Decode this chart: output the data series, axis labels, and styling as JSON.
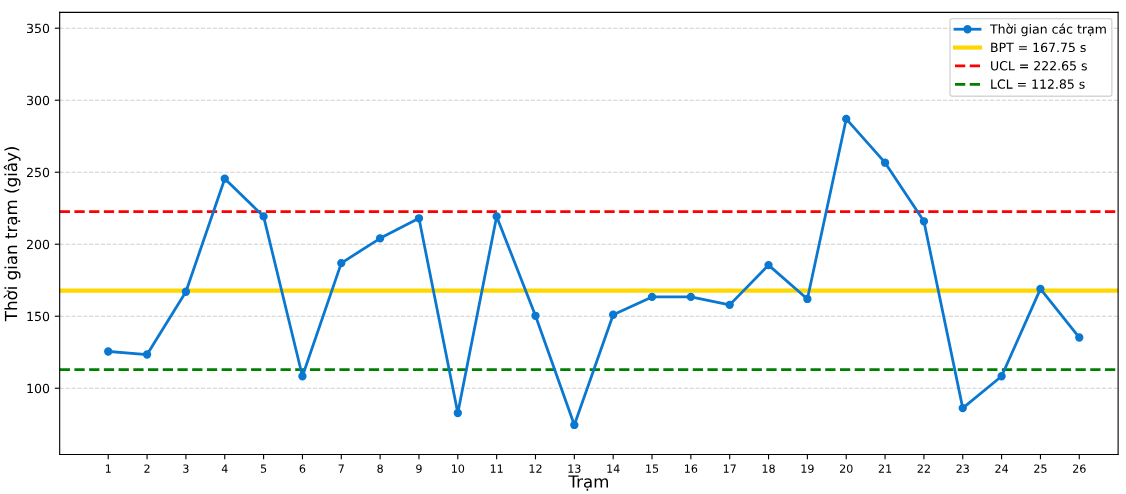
{
  "chart_data": {
    "type": "line",
    "xlabel": "Trạm",
    "ylabel": "Thời gian trạm (giây)",
    "categories": [
      "1",
      "2",
      "3",
      "4",
      "5",
      "6",
      "7",
      "8",
      "9",
      "10",
      "11",
      "12",
      "13",
      "14",
      "15",
      "16",
      "17",
      "18",
      "19",
      "20",
      "21",
      "22",
      "23",
      "24",
      "25",
      "26"
    ],
    "series": [
      {
        "name": "Thời gian các trạm",
        "color": "#0a78d0",
        "values": [
          125.5,
          123.4,
          167,
          245.5,
          219.3,
          108.3,
          186.9,
          204.1,
          218,
          82.8,
          219.3,
          150.3,
          74.5,
          151,
          163.4,
          163.4,
          157.9,
          185.5,
          162,
          287,
          256.6,
          215.9,
          86.2,
          108.3,
          169,
          135.2
        ]
      }
    ],
    "ref_lines": [
      {
        "axis": "y",
        "value": 167.75,
        "label": "BPT = 167.75 s",
        "color": "#ffd700",
        "line_style": "solid"
      },
      {
        "axis": "y",
        "value": 222.65,
        "label": "UCL = 222.65 s",
        "color": "#ff0000",
        "line_style": "dashed"
      },
      {
        "axis": "y",
        "value": 112.85,
        "label": "LCL = 112.85 s",
        "color": "#008000",
        "line_style": "dashed"
      }
    ],
    "ylim": [
      54,
      361
    ],
    "yticks": [
      100,
      150,
      200,
      250,
      300,
      350
    ],
    "grid": "y",
    "legend": "top right",
    "marker": "circle",
    "line_style": "solid"
  }
}
